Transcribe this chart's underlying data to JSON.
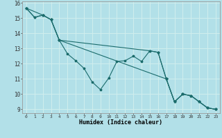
{
  "xlabel": "Humidex (Indice chaleur)",
  "background_color": "#b2e0e8",
  "grid_color": "#d0eeee",
  "line_color": "#1a6b6b",
  "xlim": [
    -0.5,
    23.5
  ],
  "ylim": [
    8.75,
    16.1
  ],
  "yticks": [
    9,
    10,
    11,
    12,
    13,
    14,
    15,
    16
  ],
  "xticks": [
    0,
    1,
    2,
    3,
    4,
    5,
    6,
    7,
    8,
    9,
    10,
    11,
    12,
    13,
    14,
    15,
    16,
    17,
    18,
    19,
    20,
    21,
    22,
    23
  ],
  "line1_x": [
    0,
    1,
    2,
    3,
    4,
    5,
    6,
    7,
    8,
    9,
    10,
    11,
    12,
    13,
    14,
    15,
    16,
    17,
    18,
    19,
    20,
    21,
    22,
    23
  ],
  "line1_y": [
    15.65,
    15.05,
    15.2,
    14.9,
    13.55,
    12.65,
    12.2,
    11.7,
    10.8,
    10.3,
    11.05,
    12.15,
    12.2,
    12.5,
    12.15,
    12.85,
    12.75,
    11.0,
    9.5,
    10.0,
    9.9,
    9.5,
    9.1,
    9.0
  ],
  "line2_x": [
    0,
    1,
    2,
    3,
    4,
    17,
    18,
    19,
    20,
    21,
    22,
    23
  ],
  "line2_y": [
    15.65,
    15.05,
    15.2,
    14.9,
    13.55,
    11.0,
    9.5,
    10.0,
    9.9,
    9.5,
    9.1,
    9.0
  ],
  "line3_x": [
    0,
    2,
    3,
    4,
    15,
    16,
    17,
    18,
    19,
    20,
    21,
    22,
    23
  ],
  "line3_y": [
    15.65,
    15.2,
    14.9,
    13.55,
    12.85,
    12.75,
    11.0,
    9.5,
    10.0,
    9.9,
    9.5,
    9.1,
    9.0
  ]
}
